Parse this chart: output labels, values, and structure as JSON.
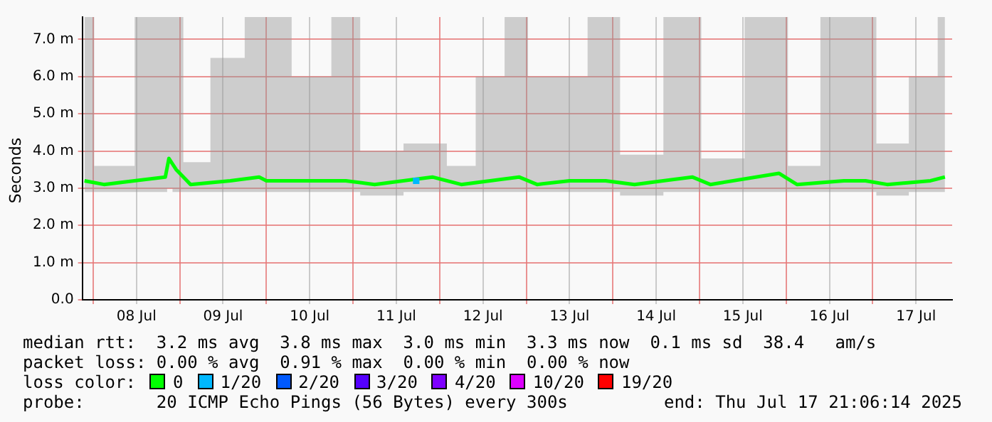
{
  "chart_data": {
    "type": "line",
    "ylabel": "Seconds",
    "legend_title": "loss color:",
    "legend": "bottom",
    "grid": true,
    "line_style": "solid",
    "xlim": [
      "2025-07-07T21:00",
      "2025-07-17T22:00"
    ],
    "xticks": [
      {
        "value": "2025-07-08T00:00",
        "label": null
      },
      {
        "value": "2025-07-08T12:00",
        "label": "08 Jul"
      },
      {
        "value": "2025-07-09T00:00",
        "label": null
      },
      {
        "value": "2025-07-09T12:00",
        "label": "09 Jul"
      },
      {
        "value": "2025-07-10T00:00",
        "label": null
      },
      {
        "value": "2025-07-10T12:00",
        "label": "10 Jul"
      },
      {
        "value": "2025-07-11T00:00",
        "label": null
      },
      {
        "value": "2025-07-11T12:00",
        "label": "11 Jul"
      },
      {
        "value": "2025-07-12T00:00",
        "label": null
      },
      {
        "value": "2025-07-12T12:00",
        "label": "12 Jul"
      },
      {
        "value": "2025-07-13T00:00",
        "label": null
      },
      {
        "value": "2025-07-13T12:00",
        "label": "13 Jul"
      },
      {
        "value": "2025-07-14T00:00",
        "label": null
      },
      {
        "value": "2025-07-14T12:00",
        "label": "14 Jul"
      },
      {
        "value": "2025-07-15T00:00",
        "label": null
      },
      {
        "value": "2025-07-15T12:00",
        "label": "15 Jul"
      },
      {
        "value": "2025-07-16T00:00",
        "label": null
      },
      {
        "value": "2025-07-16T12:00",
        "label": "16 Jul"
      },
      {
        "value": "2025-07-17T00:00",
        "label": null
      },
      {
        "value": "2025-07-17T12:00",
        "label": "17 Jul"
      }
    ],
    "ylim": [
      0,
      7.6
    ],
    "yticks": [
      {
        "value": 0,
        "label": "0.0"
      },
      {
        "value": 1,
        "label": "1.0 m"
      },
      {
        "value": 2,
        "label": "2.0 m"
      },
      {
        "value": 3,
        "label": "3.0 m"
      },
      {
        "value": 4,
        "label": "4.0 m"
      },
      {
        "value": 5,
        "label": "5.0 m"
      },
      {
        "value": 6,
        "label": "6.0 m"
      },
      {
        "value": 7,
        "label": "7.0 m"
      }
    ],
    "series": [
      {
        "name": "0",
        "color": "#00ff00",
        "x": [
          "2025-07-07T21:36",
          "2025-07-08T03:00",
          "2025-07-08T20:00",
          "2025-07-08T21:00",
          "2025-07-08T23:00",
          "2025-07-09T03:00",
          "2025-07-09T14:00",
          "2025-07-09T22:00",
          "2025-07-10T00:00",
          "2025-07-10T14:00",
          "2025-07-10T22:00",
          "2025-07-11T06:00",
          "2025-07-11T22:00",
          "2025-07-12T06:00",
          "2025-07-12T14:00",
          "2025-07-12T22:00",
          "2025-07-13T03:00",
          "2025-07-13T12:00",
          "2025-07-13T22:00",
          "2025-07-14T06:00",
          "2025-07-14T22:00",
          "2025-07-15T03:00",
          "2025-07-15T22:00",
          "2025-07-16T03:00",
          "2025-07-16T16:00",
          "2025-07-16T22:00",
          "2025-07-17T04:00",
          "2025-07-17T16:00",
          "2025-07-17T20:00"
        ],
        "values": [
          3.2,
          3.1,
          3.3,
          3.8,
          3.5,
          3.1,
          3.2,
          3.3,
          3.2,
          3.2,
          3.2,
          3.1,
          3.3,
          3.1,
          3.2,
          3.3,
          3.1,
          3.2,
          3.2,
          3.1,
          3.3,
          3.1,
          3.4,
          3.1,
          3.2,
          3.2,
          3.1,
          3.2,
          3.3
        ],
        "lower": [
          2.9,
          2.9,
          2.9,
          3.0,
          2.9,
          2.9,
          2.9,
          2.9,
          2.9,
          2.9,
          2.9,
          2.8,
          2.9,
          2.9,
          2.9,
          2.9,
          2.9,
          2.9,
          2.9,
          2.8,
          2.9,
          2.9,
          2.9,
          2.9,
          2.9,
          2.9,
          2.8,
          2.9,
          2.9
        ],
        "upper": [
          7.6,
          3.6,
          7.6,
          7.6,
          7.6,
          3.7,
          6.5,
          7.6,
          7.6,
          6.0,
          7.6,
          4.0,
          4.2,
          3.6,
          6.0,
          7.6,
          6.0,
          6.0,
          7.6,
          3.9,
          7.6,
          3.8,
          7.6,
          3.6,
          7.6,
          7.6,
          4.2,
          6.0,
          7.6
        ]
      },
      {
        "name": "1/20",
        "color": "#00b8ff",
        "type": "scatter",
        "marker": "square",
        "x": [
          "2025-07-11T17:30"
        ],
        "values": [
          3.2
        ]
      },
      {
        "name": "2/20",
        "color": "#0059ff"
      },
      {
        "name": "3/20",
        "color": "#5500ff"
      },
      {
        "name": "4/20",
        "color": "#7e00ff"
      },
      {
        "name": "10/20",
        "color": "#dd00ff"
      },
      {
        "name": "19/20",
        "color": "#ff0000"
      }
    ],
    "annotations": [
      "median rtt:  3.2 ms avg  3.8 ms max  3.0 ms min  3.3 ms now  0.1 ms sd  38.4   am/s",
      "packet loss: 0.00 % avg  0.91 % max  0.00 % min  0.00 % now",
      "probe:       20 ICMP Echo Pings (56 Bytes) every 300s",
      "end: Thu Jul 17 21:06:14 2025"
    ]
  }
}
